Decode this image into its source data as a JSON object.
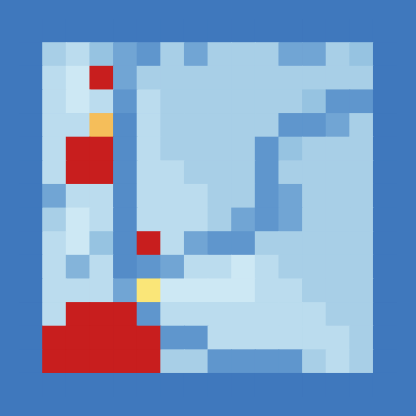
{
  "chart_data": {
    "type": "heatmap",
    "tick_labels": false,
    "grid": false,
    "cells": [
      [
        0.1,
        0.1,
        0.1,
        0.1,
        0.1,
        0.1,
        0.1,
        0.1,
        0.1,
        0.1,
        0.1,
        0.1,
        0.1,
        0.1,
        0.1,
        0.1
      ],
      [
        0.1,
        0.45,
        0.5,
        0.4,
        0.3,
        0.25,
        0.45,
        0.3,
        0.45,
        0.45,
        0.45,
        0.3,
        0.3,
        0.45,
        0.4,
        0.1
      ],
      [
        0.1,
        0.5,
        0.55,
        1,
        0.3,
        0.45,
        0.45,
        0.45,
        0.45,
        0.45,
        0.45,
        0.45,
        0.45,
        0.45,
        0.45,
        0.1
      ],
      [
        0.1,
        0.5,
        0.55,
        0.5,
        0.25,
        0.5,
        0.45,
        0.45,
        0.45,
        0.45,
        0.45,
        0.45,
        0.4,
        0.25,
        0.25,
        0.1
      ],
      [
        0.1,
        0.5,
        0.5,
        0.8,
        0.2,
        0.5,
        0.45,
        0.45,
        0.45,
        0.45,
        0.45,
        0.25,
        0.25,
        0.3,
        0.45,
        0.1
      ],
      [
        0.1,
        0.5,
        1,
        1,
        0.2,
        0.5,
        0.45,
        0.45,
        0.45,
        0.45,
        0.25,
        0.4,
        0.45,
        0.45,
        0.45,
        0.1
      ],
      [
        0.1,
        0.5,
        1,
        1,
        0.2,
        0.5,
        0.5,
        0.45,
        0.45,
        0.45,
        0.25,
        0.45,
        0.45,
        0.45,
        0.45,
        0.1
      ],
      [
        0.1,
        0.3,
        0.5,
        0.5,
        0.2,
        0.5,
        0.5,
        0.5,
        0.45,
        0.45,
        0.25,
        0.3,
        0.45,
        0.45,
        0.45,
        0.1
      ],
      [
        0.1,
        0.45,
        0.55,
        0.5,
        0.2,
        0.5,
        0.5,
        0.5,
        0.45,
        0.3,
        0.25,
        0.3,
        0.45,
        0.45,
        0.45,
        0.1
      ],
      [
        0.1,
        0.5,
        0.55,
        0.4,
        0.2,
        1,
        0.5,
        0.3,
        0.25,
        0.25,
        0.45,
        0.45,
        0.45,
        0.45,
        0.45,
        0.1
      ],
      [
        0.1,
        0.5,
        0.35,
        0.5,
        0.2,
        0.25,
        0.3,
        0.5,
        0.5,
        0.55,
        0.5,
        0.45,
        0.45,
        0.45,
        0.45,
        0.1
      ],
      [
        0.1,
        0.5,
        0.5,
        0.5,
        0.3,
        0.75,
        0.55,
        0.55,
        0.55,
        0.55,
        0.5,
        0.5,
        0.45,
        0.45,
        0.45,
        0.1
      ],
      [
        0.1,
        0.5,
        1,
        1,
        1,
        0.25,
        0.5,
        0.5,
        0.5,
        0.5,
        0.5,
        0.5,
        0.5,
        0.45,
        0.45,
        0.1
      ],
      [
        0.1,
        1,
        1,
        1,
        1,
        1,
        0.25,
        0.25,
        0.5,
        0.5,
        0.5,
        0.5,
        0.5,
        0.5,
        0.45,
        0.1
      ],
      [
        0.1,
        1,
        1,
        1,
        1,
        1,
        0.45,
        0.45,
        0.25,
        0.25,
        0.25,
        0.25,
        0.45,
        0.5,
        0.45,
        0.1
      ],
      [
        0.1,
        0.1,
        0.1,
        0.1,
        0.1,
        0.1,
        0.1,
        0.1,
        0.1,
        0.1,
        0.1,
        0.1,
        0.1,
        0.1,
        0.1,
        0.1
      ]
    ]
  }
}
